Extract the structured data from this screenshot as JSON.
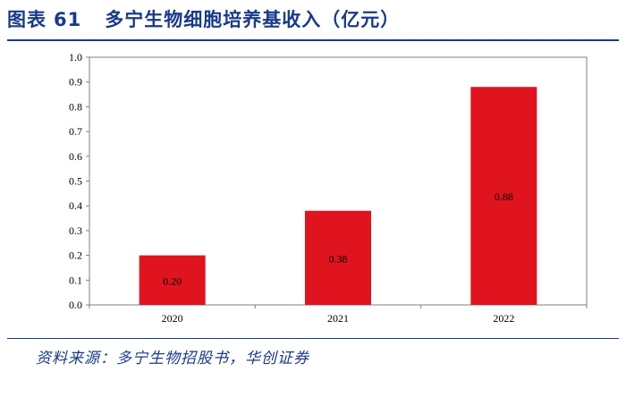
{
  "header": {
    "figure_label": "图表",
    "figure_number": "61",
    "title": "多宁生物细胞培养基收入（亿元）"
  },
  "source": "资料来源：多宁生物招股书，华创证券",
  "colors": {
    "bar": "#e0141e",
    "title": "#1a3a8a"
  },
  "chart_data": {
    "type": "bar",
    "categories": [
      "2020",
      "2021",
      "2022"
    ],
    "values": [
      0.2,
      0.38,
      0.88
    ],
    "data_labels": [
      "0.20",
      "0.38",
      "0.88"
    ],
    "y_ticks": [
      "0.0",
      "0.1",
      "0.2",
      "0.3",
      "0.4",
      "0.5",
      "0.6",
      "0.7",
      "0.8",
      "0.9",
      "1.0"
    ],
    "ylim": [
      0,
      1.0
    ],
    "title": "",
    "xlabel": "",
    "ylabel": "",
    "grid": false,
    "legend": "none"
  }
}
